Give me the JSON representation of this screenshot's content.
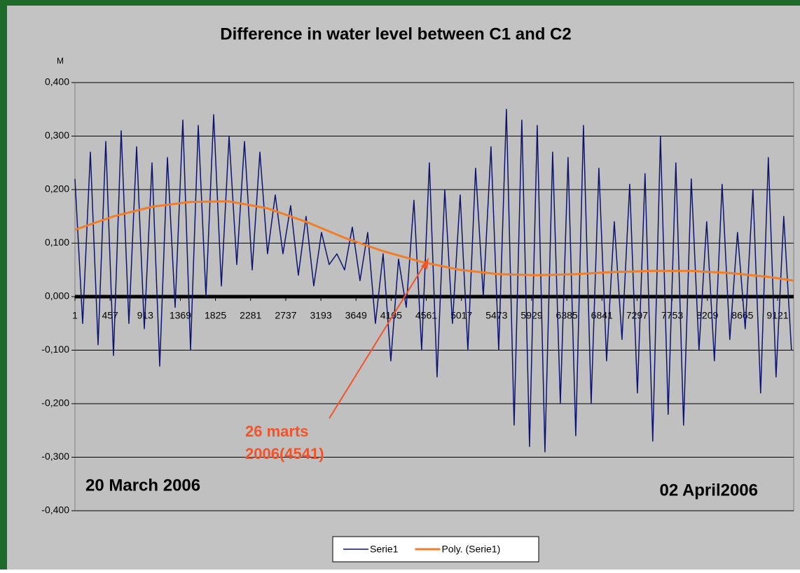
{
  "chart_data": {
    "type": "line",
    "title": "Difference in water level between C1 and C2",
    "y_label": "M",
    "annotations": [
      "26 marts",
      "2006(4541)"
    ],
    "start_label": "20 March 2006",
    "end_label": "02 April2006",
    "xlim": [
      1,
      9330
    ],
    "xticks": [
      1,
      457,
      913,
      1369,
      1825,
      2281,
      2737,
      3193,
      3649,
      4105,
      4561,
      5017,
      5473,
      5929,
      6385,
      6841,
      7297,
      7753,
      8209,
      8665,
      9121
    ],
    "ylim": [
      -0.4,
      0.4
    ],
    "yticks": [
      {
        "value": -0.4,
        "label": "-0,400"
      },
      {
        "value": -0.3,
        "label": "-0,300"
      },
      {
        "value": -0.2,
        "label": "-0,200"
      },
      {
        "value": -0.1,
        "label": "-0,100"
      },
      {
        "value": 0,
        "label": "0,000"
      },
      {
        "value": 0.1,
        "label": "0,100"
      },
      {
        "value": 0.2,
        "label": "0,200"
      },
      {
        "value": 0.3,
        "label": "0,300"
      },
      {
        "value": 0.4,
        "label": "0,400"
      }
    ],
    "grid": true,
    "legend": "bottom",
    "series": [
      {
        "name": "Serie1",
        "color": "#0d1470",
        "x": [
          1,
          101,
          201,
          301,
          401,
          501,
          601,
          701,
          801,
          901,
          1001,
          1101,
          1201,
          1301,
          1401,
          1501,
          1601,
          1701,
          1801,
          1901,
          2001,
          2101,
          2201,
          2301,
          2401,
          2501,
          2601,
          2701,
          2801,
          2901,
          3001,
          3101,
          3201,
          3301,
          3401,
          3501,
          3601,
          3701,
          3801,
          3901,
          4001,
          4101,
          4201,
          4301,
          4401,
          4501,
          4601,
          4701,
          4801,
          4901,
          5001,
          5101,
          5201,
          5301,
          5401,
          5501,
          5601,
          5701,
          5801,
          5901,
          6001,
          6101,
          6201,
          6301,
          6401,
          6501,
          6601,
          6701,
          6801,
          6901,
          7001,
          7101,
          7201,
          7301,
          7401,
          7501,
          7601,
          7701,
          7801,
          7901,
          8001,
          8101,
          8201,
          8301,
          8401,
          8501,
          8601,
          8701,
          8801,
          8901,
          9001,
          9101,
          9201,
          9301
        ],
        "values": [
          0.22,
          -0.05,
          0.27,
          -0.09,
          0.29,
          -0.11,
          0.31,
          -0.05,
          0.28,
          -0.06,
          0.25,
          -0.13,
          0.26,
          -0.02,
          0.33,
          -0.1,
          0.32,
          0.0,
          0.34,
          0.02,
          0.3,
          0.06,
          0.29,
          0.05,
          0.27,
          0.08,
          0.19,
          0.08,
          0.17,
          0.04,
          0.15,
          0.02,
          0.12,
          0.06,
          0.08,
          0.05,
          0.13,
          0.03,
          0.12,
          -0.05,
          0.08,
          -0.12,
          0.07,
          -0.02,
          0.18,
          -0.1,
          0.25,
          -0.15,
          0.2,
          -0.05,
          0.19,
          -0.1,
          0.24,
          0.0,
          0.28,
          -0.1,
          0.35,
          -0.24,
          0.33,
          -0.28,
          0.32,
          -0.29,
          0.27,
          -0.2,
          0.26,
          -0.26,
          0.32,
          -0.2,
          0.24,
          -0.12,
          0.14,
          -0.08,
          0.21,
          -0.18,
          0.23,
          -0.27,
          0.3,
          -0.22,
          0.25,
          -0.24,
          0.22,
          -0.1,
          0.14,
          -0.12,
          0.21,
          -0.08,
          0.12,
          -0.06,
          0.2,
          -0.18,
          0.26,
          -0.15,
          0.15,
          -0.1
        ]
      },
      {
        "name": "Poly. (Serie1)",
        "color": "#f07d2a",
        "x": [
          1,
          500,
          1000,
          1500,
          2000,
          2500,
          3000,
          3500,
          4000,
          4500,
          5000,
          5500,
          6000,
          6500,
          7000,
          7500,
          8000,
          8500,
          9000,
          9330
        ],
        "values": [
          0.125,
          0.15,
          0.168,
          0.177,
          0.178,
          0.165,
          0.14,
          0.11,
          0.085,
          0.065,
          0.05,
          0.042,
          0.04,
          0.042,
          0.046,
          0.048,
          0.048,
          0.044,
          0.037,
          0.03
        ]
      }
    ]
  }
}
